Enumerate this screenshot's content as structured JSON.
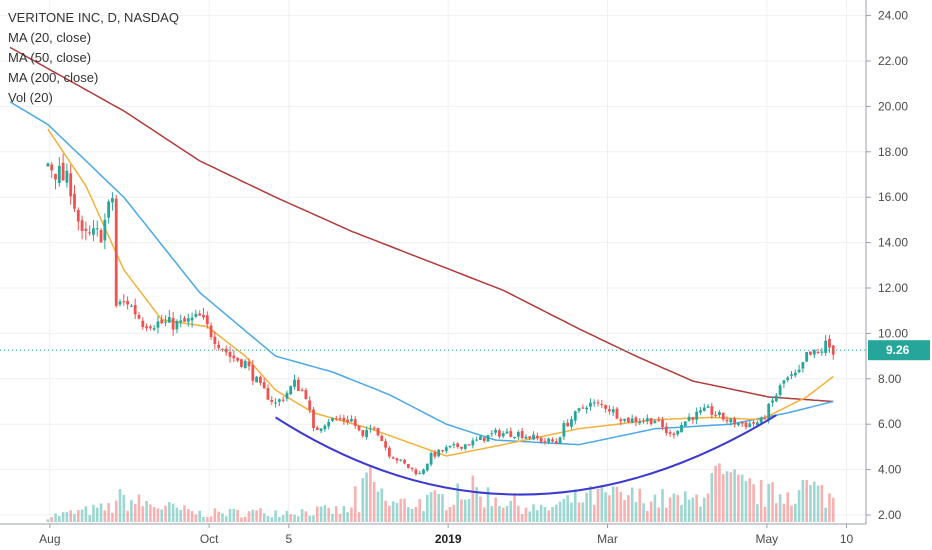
{
  "header": {
    "title": "VERITONE INC, D, NASDAQ",
    "indicators": [
      "MA (20, close)",
      "MA (50, close)",
      "MA (200, close)",
      "Vol (20)"
    ]
  },
  "current_price": "9.26",
  "colors": {
    "up": "#26a69a",
    "down": "#ef5350",
    "ma20": "#f2b13a",
    "ma50": "#4aa8e8",
    "ma200": "#b03a3a",
    "arc": "#3a3ad0",
    "price_line": "#26a69a"
  },
  "chart_data": {
    "type": "candlestick",
    "title": "VERITONE INC, D, NASDAQ",
    "y_ticks": [
      "2.00",
      "4.00",
      "6.00",
      "8.00",
      "10.00",
      "12.00",
      "14.00",
      "16.00",
      "18.00",
      "20.00",
      "22.00",
      "24.00"
    ],
    "ylim": [
      2,
      24.4
    ],
    "x_ticks": [
      {
        "label": "Aug",
        "pos": 0.5
      },
      {
        "label": "Oct",
        "pos": 42.5
      },
      {
        "label": "5",
        "pos": 63.5
      },
      {
        "label": "2019",
        "pos": 105.5,
        "bold": true
      },
      {
        "label": "Mar",
        "pos": 147.5
      },
      {
        "label": "May",
        "pos": 189.5
      },
      {
        "label": "10",
        "pos": 210.5
      }
    ],
    "x_range": [
      -10,
      213
    ],
    "price_anchors": [
      [
        0,
        17.5
      ],
      [
        6,
        16.5
      ],
      [
        9,
        14.2
      ],
      [
        14,
        14.4
      ],
      [
        17,
        16.0
      ],
      [
        18,
        11.2
      ],
      [
        21,
        11.4
      ],
      [
        25,
        10.5
      ],
      [
        35,
        10.4
      ],
      [
        40,
        10.7
      ],
      [
        44,
        9.8
      ],
      [
        48,
        9.0
      ],
      [
        52,
        8.7
      ],
      [
        56,
        7.6
      ],
      [
        60,
        6.9
      ],
      [
        62,
        7.2
      ],
      [
        65,
        7.8
      ],
      [
        68,
        7.3
      ],
      [
        70,
        5.7
      ],
      [
        74,
        6.2
      ],
      [
        80,
        6.2
      ],
      [
        83,
        5.4
      ],
      [
        86,
        6.0
      ],
      [
        88,
        5.3
      ],
      [
        90,
        4.7
      ],
      [
        95,
        4.1
      ],
      [
        98,
        3.8
      ],
      [
        101,
        4.6
      ],
      [
        105,
        4.9
      ],
      [
        112,
        5.2
      ],
      [
        118,
        5.6
      ],
      [
        124,
        5.6
      ],
      [
        130,
        5.3
      ],
      [
        134,
        5.2
      ],
      [
        136,
        5.9
      ],
      [
        142,
        6.9
      ],
      [
        147,
        6.8
      ],
      [
        152,
        6.2
      ],
      [
        160,
        6.2
      ],
      [
        164,
        5.5
      ],
      [
        169,
        6.3
      ],
      [
        174,
        6.6
      ],
      [
        180,
        6.1
      ],
      [
        184,
        6.0
      ],
      [
        188,
        6.1
      ],
      [
        191,
        7.0
      ],
      [
        194,
        7.9
      ],
      [
        198,
        8.2
      ],
      [
        200,
        9.0
      ],
      [
        203,
        9.1
      ],
      [
        205,
        9.5
      ],
      [
        207,
        9.26
      ]
    ],
    "ma_anchors": {
      "ma20": [
        [
          0,
          19.0
        ],
        [
          10,
          16.5
        ],
        [
          20,
          12.8
        ],
        [
          30,
          10.6
        ],
        [
          42,
          10.3
        ],
        [
          52,
          9.0
        ],
        [
          60,
          7.5
        ],
        [
          70,
          6.5
        ],
        [
          85,
          5.8
        ],
        [
          95,
          5.2
        ],
        [
          105,
          4.6
        ],
        [
          120,
          5.1
        ],
        [
          140,
          5.8
        ],
        [
          160,
          6.2
        ],
        [
          175,
          6.3
        ],
        [
          188,
          6.2
        ],
        [
          200,
          7.2
        ],
        [
          207,
          8.1
        ]
      ],
      "ma50": [
        [
          -10,
          20.2
        ],
        [
          0,
          19.2
        ],
        [
          20,
          16.0
        ],
        [
          40,
          11.8
        ],
        [
          50,
          10.4
        ],
        [
          60,
          9.0
        ],
        [
          75,
          8.3
        ],
        [
          90,
          7.3
        ],
        [
          105,
          6.0
        ],
        [
          118,
          5.3
        ],
        [
          140,
          5.1
        ],
        [
          160,
          5.8
        ],
        [
          180,
          6.0
        ],
        [
          195,
          6.5
        ],
        [
          207,
          7.0
        ]
      ],
      "ma200": [
        [
          -10,
          22.6
        ],
        [
          20,
          19.8
        ],
        [
          40,
          17.6
        ],
        [
          60,
          16.0
        ],
        [
          80,
          14.5
        ],
        [
          100,
          13.2
        ],
        [
          120,
          11.9
        ],
        [
          140,
          10.2
        ],
        [
          155,
          9.0
        ],
        [
          170,
          7.9
        ],
        [
          190,
          7.2
        ],
        [
          207,
          7.0
        ]
      ]
    },
    "volume_anchors": [
      [
        0,
        0.2
      ],
      [
        17,
        0.5
      ],
      [
        18,
        0.8
      ],
      [
        40,
        0.3
      ],
      [
        60,
        0.35
      ],
      [
        80,
        0.4
      ],
      [
        81,
        1.0
      ],
      [
        82,
        0.5
      ],
      [
        84,
        1.5
      ],
      [
        90,
        0.6
      ],
      [
        100,
        0.7
      ],
      [
        105,
        0.8
      ],
      [
        108,
        1.2
      ],
      [
        130,
        0.4
      ],
      [
        140,
        0.8
      ],
      [
        147,
        0.9
      ],
      [
        170,
        0.7
      ],
      [
        175,
        1.5
      ],
      [
        190,
        0.9
      ],
      [
        200,
        1.2
      ],
      [
        207,
        0.8
      ]
    ],
    "cup_arc": {
      "start": [
        60,
        6.3
      ],
      "bottom": [
        125,
        2.9
      ],
      "end": [
        192,
        6.4
      ]
    }
  }
}
